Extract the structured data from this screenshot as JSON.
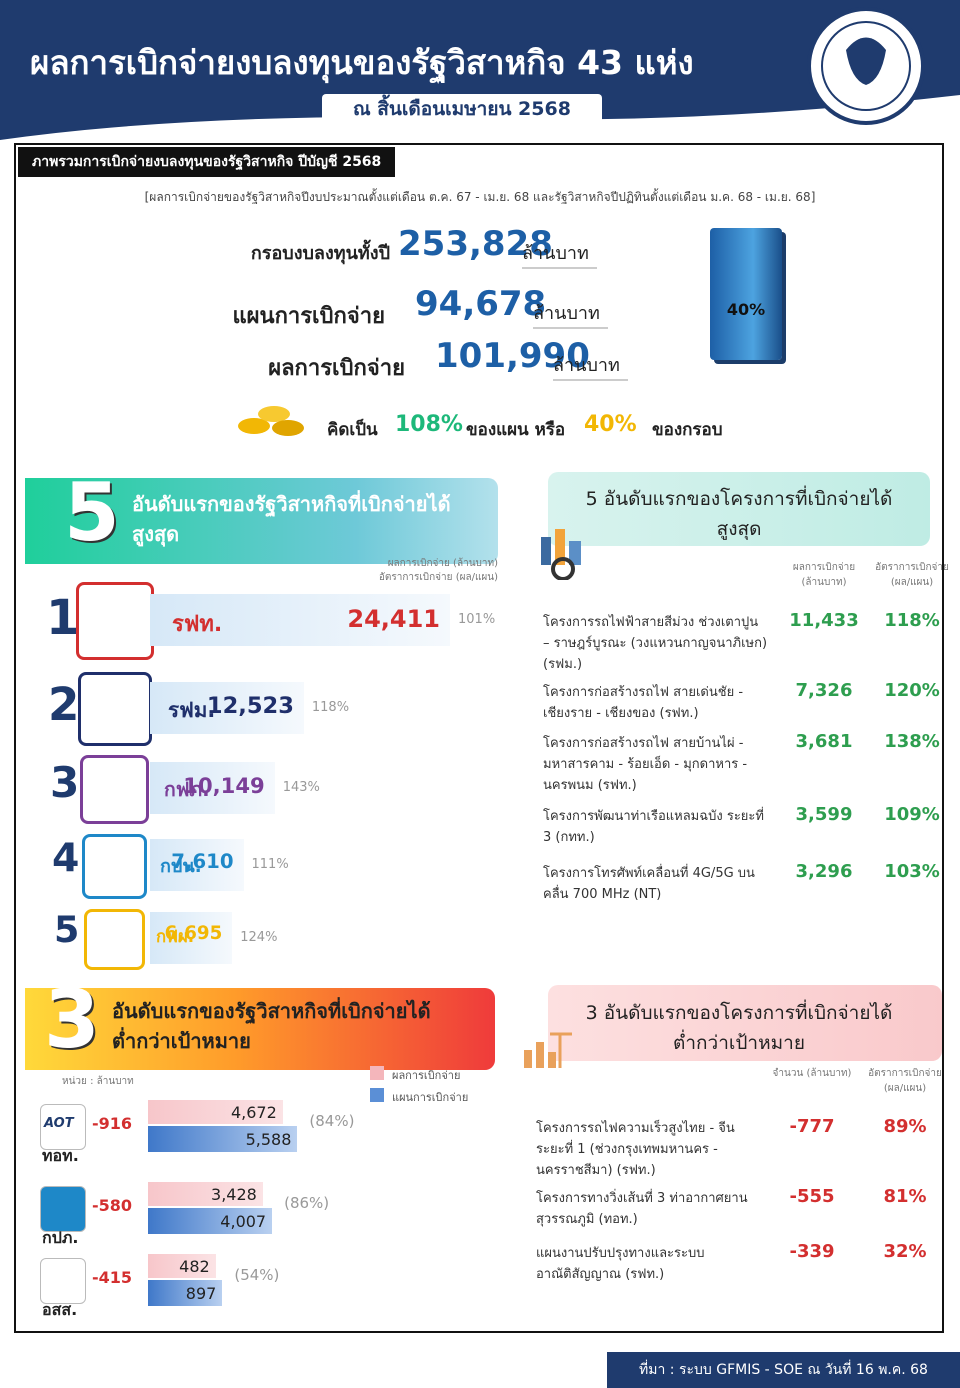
{
  "header": {
    "title": "ผลการเบิกจ่ายงบลงทุนของรัฐวิสาหกิจ 43 แห่ง",
    "subtitle": "ณ สิ้นเดือนเมษายน 2568"
  },
  "overview": {
    "heading": "ภาพรวมการเบิกจ่ายงบลงทุนของรัฐวิสาหกิจ ปีบัญชี 2568",
    "note": "[ผลการเบิกจ่ายของรัฐวิสาหกิจปีงบประมาณตั้งแต่เดือน ต.ค. 67 - เม.ย. 68 และรัฐวิสาหกิจปีปฏิทินตั้งแต่เดือน ม.ค. 68 - เม.ย. 68]",
    "rows": [
      {
        "label": "กรอบงบลงทุนทั้งปี",
        "value": "253,828",
        "unit": "ล้านบาท"
      },
      {
        "label": "แผนการเบิกจ่าย",
        "value": "94,678",
        "unit": "ล้านบาท"
      },
      {
        "label": "ผลการเบิกจ่าย",
        "value": "101,990",
        "unit": "ล้านบาท"
      }
    ],
    "cylinder_label": "40%",
    "summary": {
      "prefix": "คิดเป็น",
      "pct_plan": "108%",
      "middle": "ของแผน หรือ",
      "pct_frame": "40%",
      "suffix": "ของกรอบ"
    }
  },
  "top_soe": {
    "rank_count": "5",
    "title": [
      "อันดับแรกของรัฐวิสาหกิจที่เบิกจ่ายได้",
      "สูงสุด"
    ],
    "col_value": "ผลการเบิกจ่าย (ล้านบาท)",
    "col_rate": "อัตราการเบิกจ่าย (ผล/แผน)",
    "items": [
      {
        "rank": "1",
        "name": "รฟท.",
        "value": 24411,
        "value_label": "24,411",
        "rate": "101%",
        "color": "#d32f2f"
      },
      {
        "rank": "2",
        "name": "รฟม.",
        "value": 12523,
        "value_label": "12,523",
        "rate": "118%",
        "color": "#1f2f6b"
      },
      {
        "rank": "3",
        "name": "กฟภ.",
        "value": 10149,
        "value_label": "10,149",
        "rate": "143%",
        "color": "#7b3f98"
      },
      {
        "rank": "4",
        "name": "กปน.",
        "value": 7610,
        "value_label": "7,610",
        "rate": "111%",
        "color": "#1e88c8"
      },
      {
        "rank": "5",
        "name": "กฟผ.",
        "value": 6695,
        "value_label": "6,695",
        "rate": "124%",
        "color": "#f2b705"
      }
    ]
  },
  "top_projects": {
    "title": [
      "5 อันดับแรกของโครงการที่เบิกจ่ายได้",
      "สูงสุด"
    ],
    "col_value": "ผลการเบิกจ่าย (ล้านบาท)",
    "col_rate": "อัตราการเบิกจ่าย (ผล/แผน)",
    "items": [
      {
        "name": "โครงการรถไฟฟ้าสายสีม่วง ช่วงเตาปูน – ราษฎร์บูรณะ (วงแหวนกาญจนาภิเษก) (รฟม.)",
        "value": "11,433",
        "rate": "118%"
      },
      {
        "name": "โครงการก่อสร้างรถไฟ สายเด่นชัย - เชียงราย - เชียงของ (รฟท.)",
        "value": "7,326",
        "rate": "120%"
      },
      {
        "name": "โครงการก่อสร้างรถไฟ สายบ้านไผ่ - มหาสารคาม - ร้อยเอ็ด - มุกดาหาร - นครพนม (รฟท.)",
        "value": "3,681",
        "rate": "138%"
      },
      {
        "name": "โครงการพัฒนาท่าเรือแหลมฉบัง ระยะที่ 3 (กทท.)",
        "value": "3,599",
        "rate": "109%"
      },
      {
        "name": "โครงการโทรศัพท์เคลื่อนที่ 4G/5G บนคลื่น 700 MHz (NT)",
        "value": "3,296",
        "rate": "103%"
      }
    ]
  },
  "low_soe": {
    "rank_count": "3",
    "title": [
      "อันดับแรกของรัฐวิสาหกิจที่เบิกจ่ายได้",
      "ต่ำกว่าเป้าหมาย"
    ],
    "unit": "หน่วย : ล้านบาท",
    "legend_actual": "ผลการเบิกจ่าย",
    "legend_plan": "แผนการเบิกจ่าย",
    "items": [
      {
        "logo_text": "AOT",
        "name": "ทอท.",
        "diff": "-916",
        "actual": 4672,
        "actual_label": "4,672",
        "plan": 5588,
        "plan_label": "5,588",
        "rate": "(84%)"
      },
      {
        "name": "กปภ.",
        "diff": "-580",
        "actual": 3428,
        "actual_label": "3,428",
        "plan": 4007,
        "plan_label": "4,007",
        "rate": "(86%)"
      },
      {
        "name": "อสส.",
        "diff": "-415",
        "actual": 482,
        "actual_label": "482",
        "plan": 897,
        "plan_label": "897",
        "rate": "(54%)"
      }
    ]
  },
  "low_projects": {
    "title": [
      "3 อันดับแรกของโครงการที่เบิกจ่ายได้",
      "ต่ำกว่าเป้าหมาย"
    ],
    "col_value": "จำนวน (ล้านบาท)",
    "col_rate": "อัตราการเบิกจ่าย (ผล/แผน)",
    "items": [
      {
        "name": "โครงการรถไฟความเร็วสูงไทย - จีน ระยะที่ 1 (ช่วงกรุงเทพมหานคร - นครราชสีมา) (รฟท.)",
        "value": "-777",
        "rate": "89%"
      },
      {
        "name": "โครงการทางวิ่งเส้นที่ 3 ท่าอากาศยานสุวรรณภูมิ (ทอท.)",
        "value": "-555",
        "rate": "81%"
      },
      {
        "name": "แผนงานปรับปรุงทางและระบบอาณัติสัญญาณ (รฟท.)",
        "value": "-339",
        "rate": "32%"
      }
    ]
  },
  "footer": {
    "source": "ที่มา : ระบบ GFMIS - SOE ณ วันที่ 16 พ.ค. 68"
  }
}
